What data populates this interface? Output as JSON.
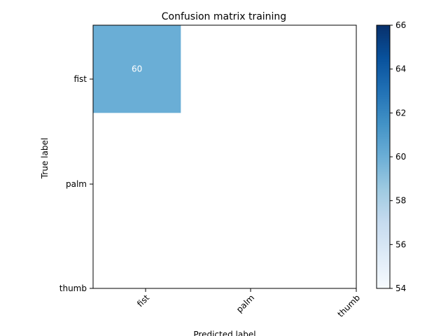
{
  "chart_data": {
    "type": "heatmap",
    "title": "Confusion matrix training",
    "xlabel": "Predicted label",
    "ylabel": "True label",
    "x_categories": [
      "fist",
      "palm",
      "thumb"
    ],
    "y_categories": [
      "fist",
      "palm",
      "thumb"
    ],
    "cells": [
      {
        "row": "fist",
        "col": "fist",
        "value": 60,
        "label": "60"
      }
    ],
    "colorbar": {
      "range": [
        54,
        66
      ],
      "ticks": [
        "54",
        "56",
        "58",
        "60",
        "62",
        "64",
        "66"
      ],
      "colormap": "Blues"
    },
    "colors": {
      "cell_fill": "#6aaed6",
      "cell_text": "#ffffff",
      "cbar_low": "#f7fbff",
      "cbar_high": "#08306b"
    }
  }
}
